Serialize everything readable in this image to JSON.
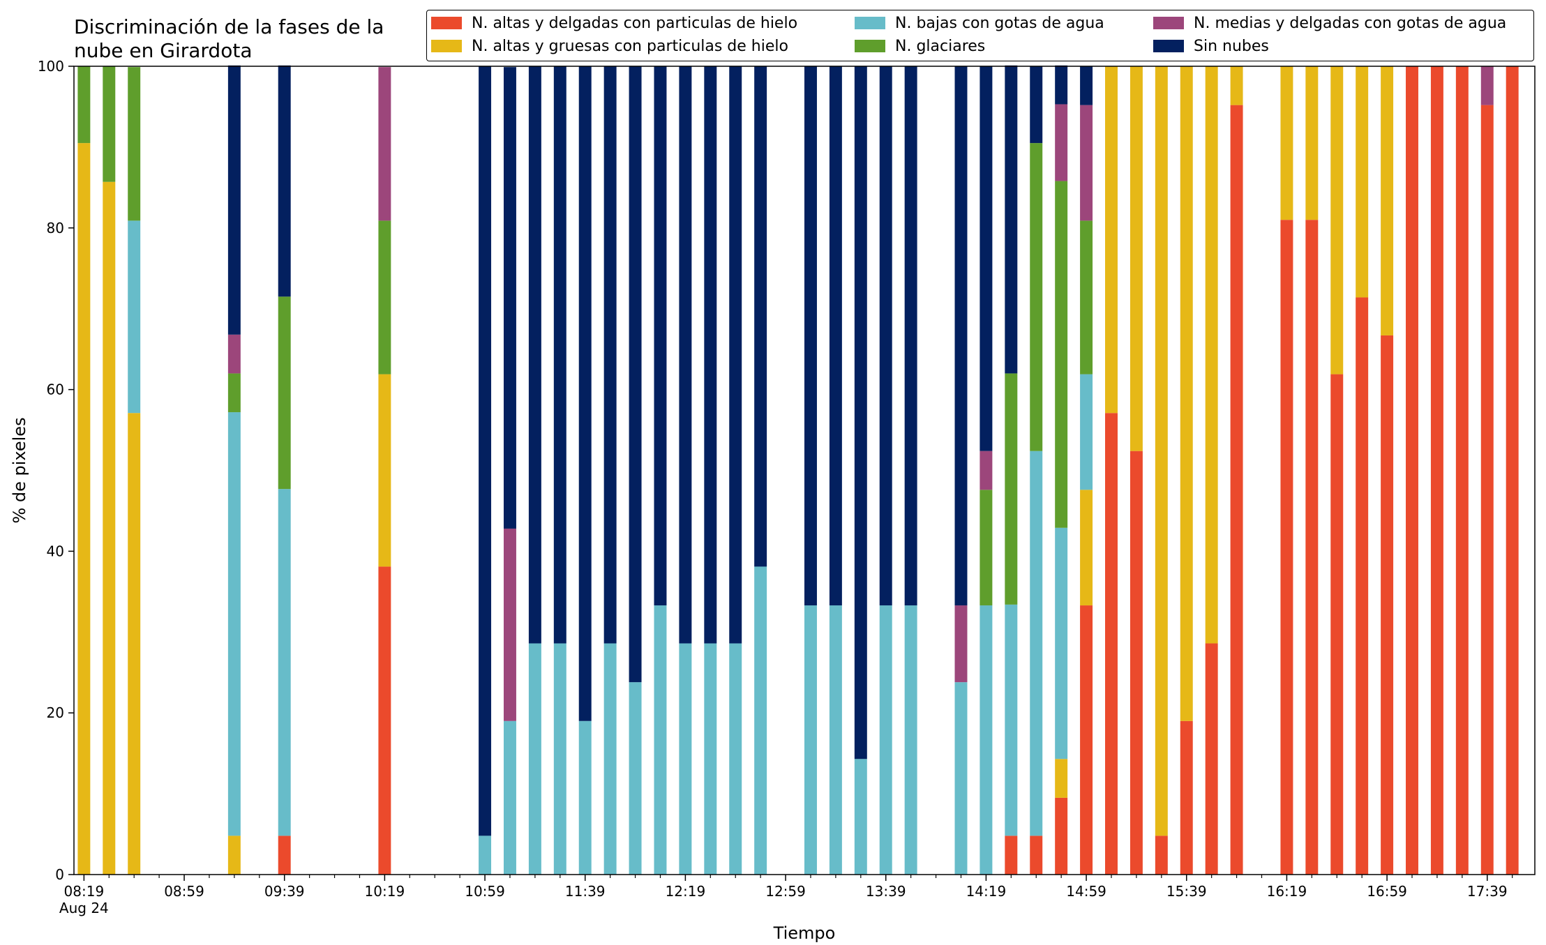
{
  "chart_data": {
    "type": "bar",
    "stacked": true,
    "title": "Discriminación de la fases de la\nnube en Girardota",
    "xlabel": "Tiempo",
    "ylabel": "% de pixeles",
    "ylim": [
      0,
      100
    ],
    "yticks": [
      0,
      20,
      40,
      60,
      80,
      100
    ],
    "grid": false,
    "legend_position": "top",
    "xtick_labels": [
      "08:19",
      "08:59",
      "09:39",
      "10:19",
      "10:59",
      "11:39",
      "12:19",
      "12:59",
      "13:39",
      "14:19",
      "14:59",
      "15:39",
      "16:19",
      "16:59",
      "17:39"
    ],
    "xtick_sublabel": "Aug 24",
    "x_minutes_range": [
      495,
      1078
    ],
    "x_major_start": 499,
    "x_major_step": 40,
    "x_minor_step": 10,
    "bar_width_minutes": 5,
    "times": [
      499,
      509,
      519,
      559,
      579,
      619,
      659,
      669,
      679,
      689,
      699,
      709,
      719,
      729,
      739,
      749,
      759,
      769,
      789,
      799,
      809,
      819,
      829,
      849,
      859,
      869,
      879,
      889,
      899,
      909,
      919,
      929,
      939,
      949,
      959,
      979,
      989,
      999,
      1009,
      1019,
      1029,
      1039,
      1049,
      1059,
      1069
    ],
    "series": [
      {
        "name": "N. altas y delgadas con particulas de hielo",
        "color": "#eb4a2c",
        "values": [
          0,
          0,
          0,
          0,
          4.8,
          38.1,
          0,
          0,
          0,
          0,
          0,
          0,
          0,
          0,
          0,
          0,
          0,
          0,
          0,
          0,
          0,
          0,
          0,
          0,
          0,
          4.8,
          4.8,
          9.5,
          33.3,
          57.1,
          52.4,
          4.8,
          19.0,
          28.6,
          95.2,
          81.0,
          81.0,
          61.9,
          71.4,
          66.7,
          100,
          100,
          100,
          95.2,
          100
        ]
      },
      {
        "name": "N. altas y gruesas con particulas de hielo",
        "color": "#e6b817",
        "values": [
          90.5,
          85.7,
          57.1,
          4.8,
          0,
          23.8,
          0,
          0,
          0,
          0,
          0,
          0,
          0,
          0,
          0,
          0,
          0,
          0,
          0,
          0,
          0,
          0,
          0,
          0,
          0,
          0,
          0,
          4.8,
          14.3,
          42.9,
          47.6,
          95.2,
          81.0,
          71.4,
          4.8,
          19.0,
          19.0,
          38.1,
          28.6,
          33.3,
          0,
          0,
          0,
          0,
          0
        ]
      },
      {
        "name": "N. bajas con gotas de agua",
        "color": "#67bcc9",
        "values": [
          0,
          0,
          23.8,
          52.4,
          42.9,
          0,
          4.8,
          19.0,
          28.6,
          28.6,
          19.0,
          28.6,
          23.8,
          33.3,
          28.6,
          28.6,
          28.6,
          38.1,
          33.3,
          33.3,
          14.3,
          33.3,
          33.3,
          23.8,
          33.3,
          28.6,
          47.6,
          28.6,
          14.3,
          0,
          0,
          0,
          0,
          0,
          0,
          0,
          0,
          0,
          0,
          0,
          0,
          0,
          0,
          0,
          0
        ]
      },
      {
        "name": "N. glaciares",
        "color": "#5f9e2c",
        "values": [
          9.5,
          14.3,
          19.0,
          4.8,
          23.8,
          19.0,
          0,
          0,
          0,
          0,
          0,
          0,
          0,
          0,
          0,
          0,
          0,
          0,
          0,
          0,
          0,
          0,
          0,
          0,
          14.3,
          28.6,
          38.1,
          42.9,
          19.0,
          0,
          0,
          0,
          0,
          0,
          0,
          0,
          0,
          0,
          0,
          0,
          0,
          0,
          0,
          0,
          0
        ]
      },
      {
        "name": "N. medias y delgadas con gotas de agua",
        "color": "#9c467b",
        "values": [
          0,
          0,
          0,
          4.8,
          0,
          19.0,
          0,
          23.8,
          0,
          0,
          0,
          0,
          0,
          0,
          0,
          0,
          0,
          0,
          0,
          0,
          0,
          0,
          0,
          9.5,
          4.8,
          0,
          0,
          9.5,
          14.3,
          0,
          0,
          0,
          0,
          0,
          0,
          0,
          0,
          0,
          0,
          0,
          0,
          0,
          0,
          4.8,
          0
        ]
      },
      {
        "name": "Sin nubes",
        "color": "#03205f",
        "values": [
          0,
          0,
          0,
          33.3,
          28.6,
          0,
          95.2,
          57.1,
          71.4,
          71.4,
          81.0,
          71.4,
          76.2,
          66.7,
          71.4,
          71.4,
          71.4,
          61.9,
          66.7,
          66.7,
          85.7,
          66.7,
          66.7,
          66.7,
          47.6,
          38.1,
          9.5,
          4.8,
          4.8,
          0,
          0,
          0,
          0,
          0,
          0,
          0,
          0,
          0,
          0,
          0,
          0,
          0,
          0,
          0,
          0
        ]
      }
    ]
  }
}
